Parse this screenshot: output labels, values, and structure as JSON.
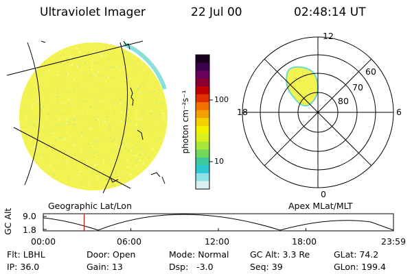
{
  "header": {
    "title": "Ultraviolet Imager",
    "date": "22 Jul 00",
    "time": "02:48:14 UT"
  },
  "colorbar": {
    "unit_label": "photon cm⁻²s⁻¹",
    "ticks": [
      "100",
      "10"
    ],
    "colors": [
      "#1a0020",
      "#3c0050",
      "#6a0060",
      "#8a0030",
      "#c00000",
      "#e03000",
      "#f07000",
      "#f4a000",
      "#f4d000",
      "#f0f000",
      "#d8f020",
      "#a8e838",
      "#70d858",
      "#40c8a0",
      "#30c8d0",
      "#90e0e8",
      "#d8f0f0"
    ]
  },
  "left_image": {
    "label": "Geographic Lat/Lon",
    "fill_color": "#f2f250"
  },
  "polar_plot": {
    "label": "Apex MLat/MLT",
    "lat_labels": [
      "60",
      "70",
      "80"
    ],
    "mlt_labels": {
      "top": "12",
      "bottom": "0",
      "left": "18",
      "right": "6"
    }
  },
  "altitude_plot": {
    "ylabel": "GC Alt",
    "y_ticks": [
      "9.0",
      "1.8"
    ],
    "x_ticks": [
      "00:00",
      "06:00",
      "12:00",
      "18:00",
      "23:59"
    ],
    "current_marker_hours": 2.8
  },
  "status": {
    "row1": [
      {
        "label": "Flt:",
        "value": "LBHL"
      },
      {
        "label": "Door:",
        "value": "Open"
      },
      {
        "label": "Mode:",
        "value": "Normal"
      },
      {
        "label": "GC Alt:",
        "value": "3.3 Re"
      },
      {
        "label": "GLat:",
        "value": "74.2"
      }
    ],
    "row2": [
      {
        "label": "IP:",
        "value": "36.0"
      },
      {
        "label": "Gain:",
        "value": "13"
      },
      {
        "label": "Dsp:",
        "value": "-3.0"
      },
      {
        "label": "Seq:",
        "value": "39"
      },
      {
        "label": "GLon:",
        "value": "199.4"
      }
    ]
  }
}
